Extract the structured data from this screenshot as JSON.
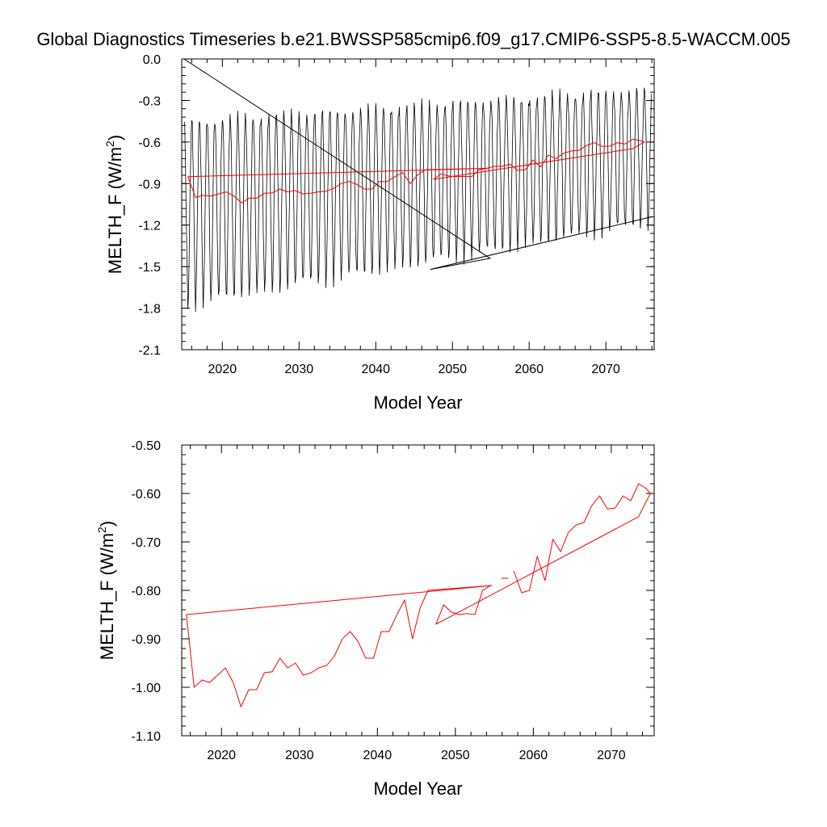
{
  "title": "Global Diagnostics Timeseries b.e21.BWSSP585cmip6.f09_g17.CMIP6-SSP5-8.5-WACCM.005",
  "colors": {
    "monthly": "#000000",
    "annual": "#ff0000"
  },
  "chart_data": [
    {
      "type": "line",
      "xlabel": "Model Year",
      "ylabel_main": "MELTH_F (W/m",
      "ylabel_sup": "2",
      "ylabel_close": ")",
      "xlim": [
        2014.7,
        2076.3
      ],
      "ylim": [
        -2.1,
        0.0
      ],
      "x_ticks": [
        2020,
        2030,
        2040,
        2050,
        2060,
        2070
      ],
      "x_tick_labels": [
        "2020",
        "2030",
        "2040",
        "2050",
        "2060",
        "2070"
      ],
      "y_ticks": [
        0.0,
        -0.3,
        -0.6,
        -0.9,
        -1.2,
        -1.5,
        -1.8,
        -2.1
      ],
      "y_tick_labels": [
        "0.0",
        "-0.3",
        "-0.6",
        "-0.9",
        "-1.2",
        "-1.5",
        "-1.8",
        "-2.1"
      ],
      "series": [
        {
          "name": "monthly",
          "color": "#000000",
          "start_year": 2015,
          "end_year": 2075,
          "seasonal_peak_start": -0.45,
          "seasonal_peak_end": -0.22,
          "seasonal_trough_start": -1.8,
          "seasonal_trough_end": -1.2
        },
        {
          "name": "wrap-segment",
          "color": "#000000",
          "x": [
            2015.0,
            2054.9,
            2047.1,
            2076.0
          ],
          "y": [
            0.0,
            -1.44,
            -1.52,
            -1.14
          ]
        },
        {
          "name": "annual-mean",
          "color": "#ff0000",
          "x": [
            2015.5,
            2016.5,
            2017.5,
            2018.5,
            2019.5,
            2020.5,
            2021.5,
            2022.5,
            2023.5,
            2024.5,
            2025.5,
            2026.5,
            2027.5,
            2028.5,
            2029.5,
            2030.5,
            2031.5,
            2032.5,
            2033.5,
            2034.5,
            2035.5,
            2036.5,
            2037.5,
            2038.5,
            2039.5,
            2040.5,
            2041.5,
            2042.5,
            2043.5,
            2044.5,
            2045.5,
            2046.5,
            2054.7,
            2015.5
          ],
          "y": [
            -0.85,
            -1.0,
            -0.985,
            -0.99,
            -0.975,
            -0.96,
            -0.99,
            -1.04,
            -1.005,
            -1.005,
            -0.97,
            -0.968,
            -0.94,
            -0.96,
            -0.95,
            -0.975,
            -0.97,
            -0.96,
            -0.955,
            -0.935,
            -0.9,
            -0.885,
            -0.905,
            -0.94,
            -0.94,
            -0.885,
            -0.885,
            -0.85,
            -0.82,
            -0.9,
            -0.835,
            -0.8,
            -0.79,
            -0.85
          ]
        },
        {
          "name": "annual-mean-late",
          "color": "#ff0000",
          "x": [
            2047.5,
            2048.5,
            2049.5,
            2050.5,
            2051.5,
            2052.5,
            2053.5,
            2054.5,
            2055.5,
            2056.5,
            2057.5,
            2058.5,
            2059.5,
            2060.5,
            2061.5,
            2062.5,
            2063.5,
            2064.5,
            2065.5,
            2066.5,
            2067.5,
            2068.5,
            2069.5,
            2070.5,
            2071.5,
            2072.5,
            2073.5,
            2074.5,
            2075.0,
            2073.5,
            2047.5
          ],
          "y": [
            -0.87,
            -0.83,
            -0.845,
            -0.85,
            -0.848,
            -0.85,
            -0.8,
            -0.79,
            -0.775,
            -0.775,
            -0.76,
            -0.805,
            -0.8,
            -0.73,
            -0.78,
            -0.695,
            -0.72,
            -0.68,
            -0.665,
            -0.66,
            -0.625,
            -0.605,
            -0.632,
            -0.63,
            -0.605,
            -0.615,
            -0.58,
            -0.59,
            -0.6,
            -0.648,
            -0.87
          ]
        }
      ]
    },
    {
      "type": "line",
      "xlabel": "Model Year",
      "ylabel_main": "MELTH_F (W/m",
      "ylabel_sup": "2",
      "ylabel_close": ")",
      "xlim": [
        2014.9,
        2075.5
      ],
      "ylim": [
        -1.1,
        -0.5
      ],
      "x_ticks": [
        2020,
        2030,
        2040,
        2050,
        2060,
        2070
      ],
      "x_tick_labels": [
        "2020",
        "2030",
        "2040",
        "2050",
        "2060",
        "2070"
      ],
      "y_ticks": [
        -0.5,
        -0.6,
        -0.7,
        -0.8,
        -0.9,
        -1.0,
        -1.1
      ],
      "y_tick_labels": [
        "-0.50",
        "-0.60",
        "-0.70",
        "-0.80",
        "-0.90",
        "-1.00",
        "-1.10"
      ],
      "series": [
        {
          "name": "annual-mean",
          "color": "#ff0000",
          "x": [
            2015.5,
            2016.5,
            2017.5,
            2018.5,
            2019.5,
            2020.5,
            2021.5,
            2022.5,
            2023.5,
            2024.5,
            2025.5,
            2026.5,
            2027.5,
            2028.5,
            2029.5,
            2030.5,
            2031.5,
            2032.5,
            2033.5,
            2034.5,
            2035.5,
            2036.5,
            2037.5,
            2038.5,
            2039.5,
            2040.5,
            2041.5,
            2042.5,
            2043.5,
            2044.5,
            2045.5,
            2046.5,
            2054.7,
            2015.5
          ],
          "y": [
            -0.85,
            -1.0,
            -0.985,
            -0.99,
            -0.975,
            -0.96,
            -0.99,
            -1.04,
            -1.005,
            -1.005,
            -0.97,
            -0.968,
            -0.94,
            -0.96,
            -0.95,
            -0.975,
            -0.97,
            -0.96,
            -0.955,
            -0.935,
            -0.9,
            -0.885,
            -0.905,
            -0.94,
            -0.94,
            -0.885,
            -0.885,
            -0.85,
            -0.82,
            -0.9,
            -0.835,
            -0.8,
            -0.79,
            -0.85
          ]
        },
        {
          "name": "annual-mean-late",
          "color": "#ff0000",
          "x": [
            2047.5,
            2048.5,
            2049.5,
            2050.5,
            2051.5,
            2052.5,
            2053.5,
            2054.5
          ],
          "y": [
            -0.87,
            -0.83,
            -0.845,
            -0.85,
            -0.848,
            -0.85,
            -0.8,
            -0.79
          ]
        },
        {
          "name": "annual-mean-fragment",
          "color": "#ff0000",
          "x": [
            2055.9,
            2056.8
          ],
          "y": [
            -0.775,
            -0.775
          ]
        },
        {
          "name": "annual-mean-tail",
          "color": "#ff0000",
          "x": [
            2057.5,
            2058.5,
            2059.5,
            2060.5,
            2061.5,
            2062.5,
            2063.5,
            2064.5,
            2065.5,
            2066.5,
            2067.5,
            2068.5,
            2069.5,
            2070.5,
            2071.5,
            2072.5,
            2073.5,
            2074.5,
            2075.0,
            2073.5,
            2047.5
          ],
          "y": [
            -0.76,
            -0.805,
            -0.8,
            -0.73,
            -0.78,
            -0.695,
            -0.72,
            -0.68,
            -0.665,
            -0.66,
            -0.625,
            -0.605,
            -0.632,
            -0.63,
            -0.605,
            -0.615,
            -0.58,
            -0.59,
            -0.6,
            -0.648,
            -0.87
          ]
        }
      ]
    }
  ]
}
